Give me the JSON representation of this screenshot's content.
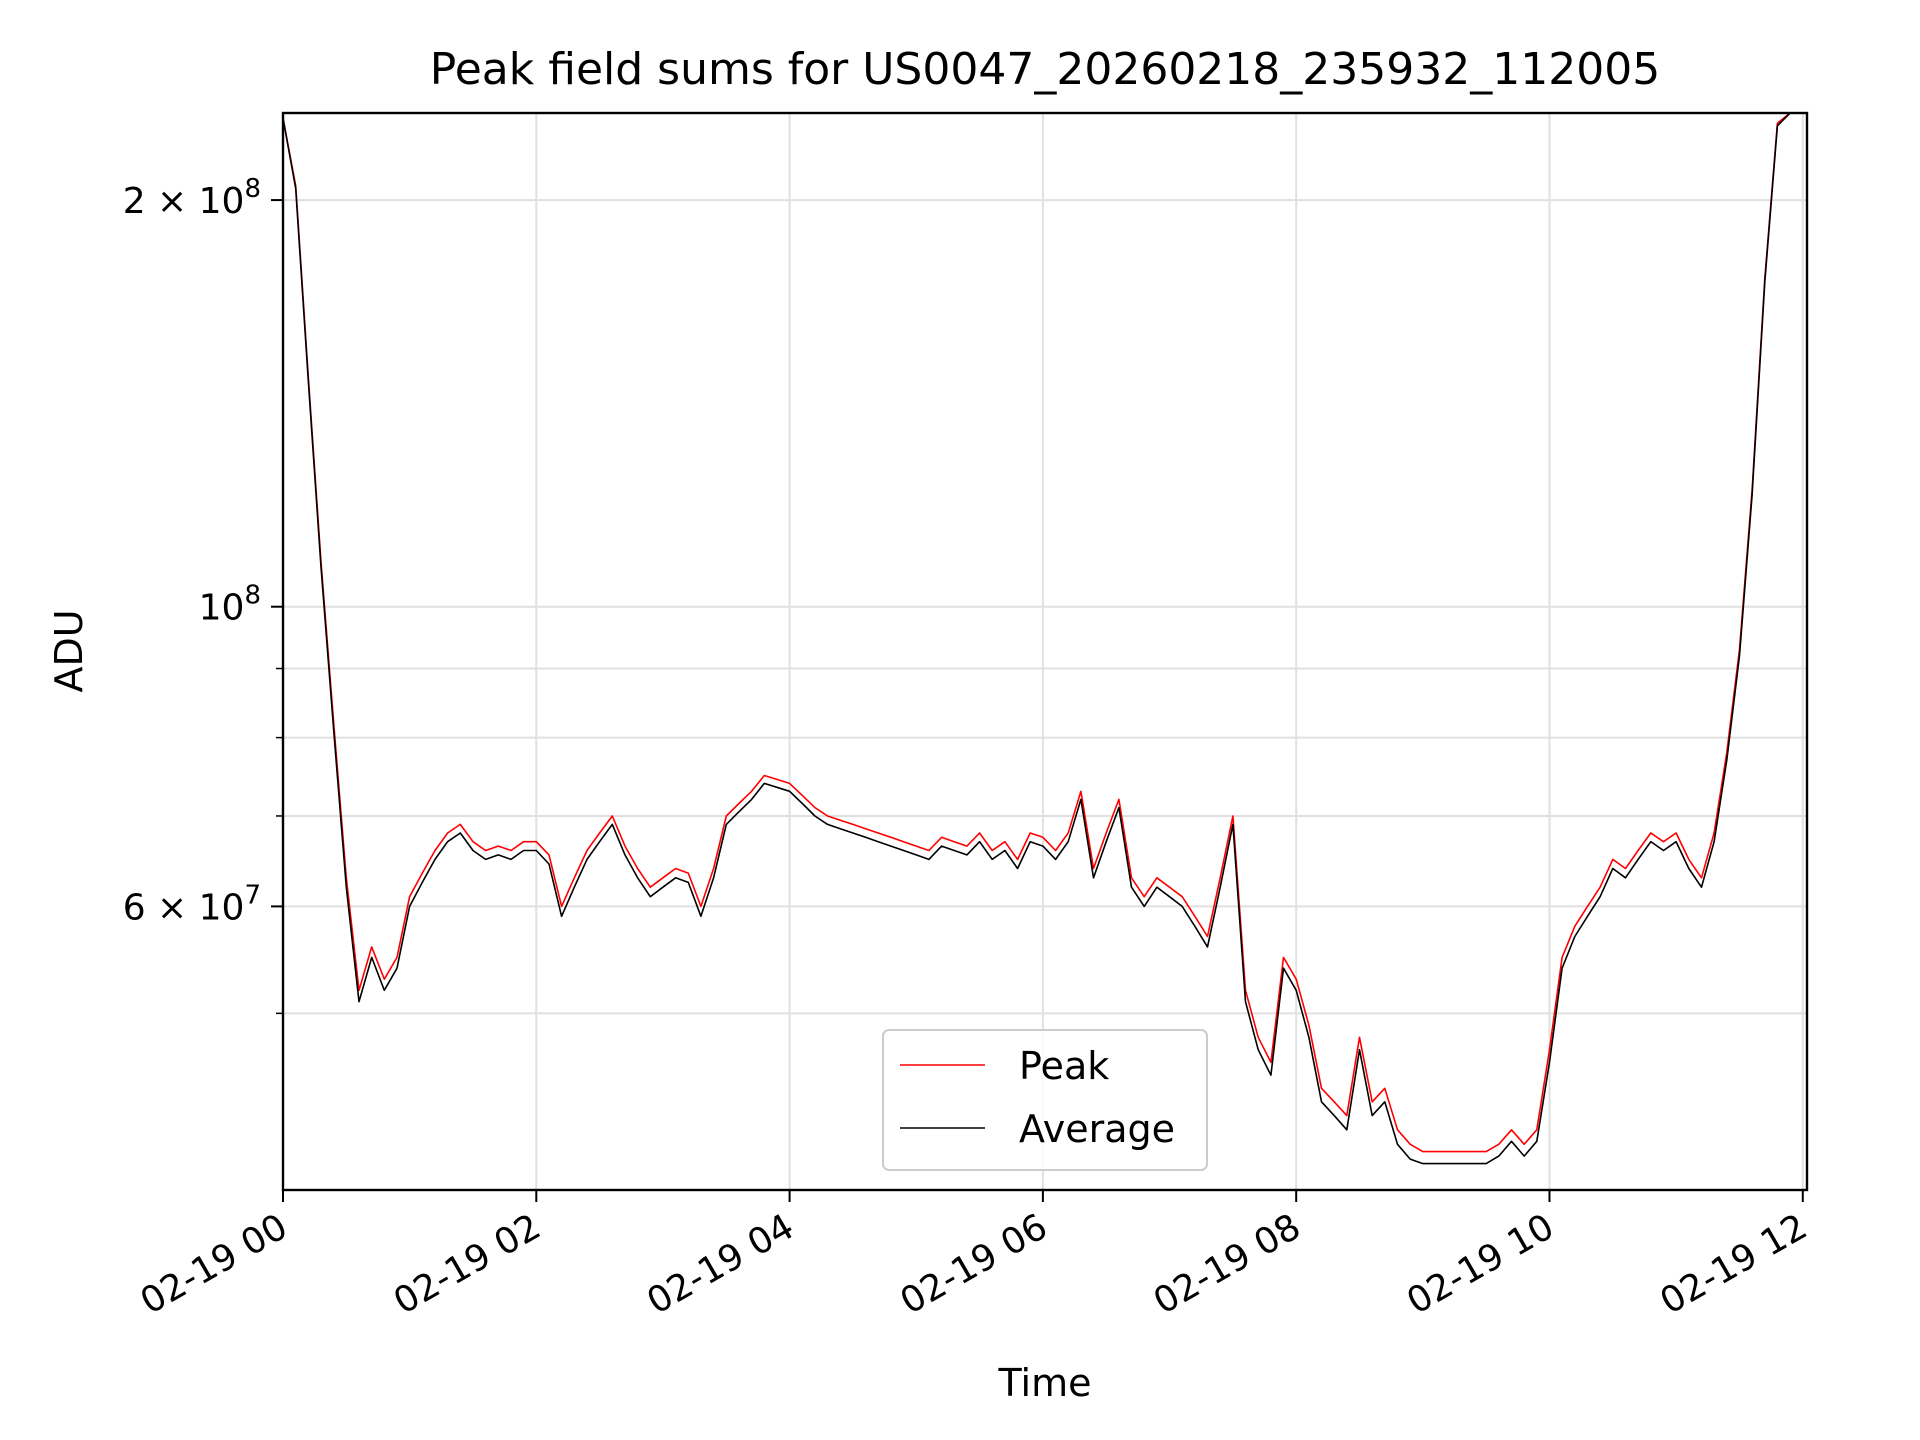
{
  "chart_data": {
    "type": "line",
    "title": "Peak field sums for US0047_20260218_235932_112005",
    "xlabel": "Time",
    "ylabel": "ADU",
    "y_scale": "log",
    "ylim": [
      37000000,
      232000000
    ],
    "xlim": [
      "02-19 00:00",
      "02-19 12:02"
    ],
    "grid": true,
    "legend_position": "lower center",
    "x_ticks": [
      {
        "value": "02-19 00:00",
        "label": "02-19 00"
      },
      {
        "value": "02-19 02:00",
        "label": "02-19 02"
      },
      {
        "value": "02-19 04:00",
        "label": "02-19 04"
      },
      {
        "value": "02-19 06:00",
        "label": "02-19 06"
      },
      {
        "value": "02-19 08:00",
        "label": "02-19 08"
      },
      {
        "value": "02-19 10:00",
        "label": "02-19 10"
      },
      {
        "value": "02-19 12:00",
        "label": "02-19 12"
      }
    ],
    "y_major_ticks": [
      {
        "value": 200000000,
        "mant": "2",
        "base": "10",
        "exp": "8",
        "mult": true
      },
      {
        "value": 100000000,
        "mant": "",
        "base": "10",
        "exp": "8",
        "mult": false
      },
      {
        "value": 60000000,
        "mant": "6",
        "base": "10",
        "exp": "7",
        "mult": true
      }
    ],
    "y_minor_ticks": [
      50000000,
      70000000,
      80000000,
      90000000
    ],
    "series": [
      {
        "name": "Peak",
        "color": "#ff0000",
        "x": [
          "02-19 00:00",
          "02-19 00:06",
          "02-19 00:12",
          "02-19 00:18",
          "02-19 00:24",
          "02-19 00:30",
          "02-19 00:36",
          "02-19 00:42",
          "02-19 00:48",
          "02-19 00:54",
          "02-19 01:00",
          "02-19 01:06",
          "02-19 01:12",
          "02-19 01:18",
          "02-19 01:24",
          "02-19 01:30",
          "02-19 01:36",
          "02-19 01:42",
          "02-19 01:48",
          "02-19 01:54",
          "02-19 02:00",
          "02-19 02:06",
          "02-19 02:12",
          "02-19 02:18",
          "02-19 02:24",
          "02-19 02:30",
          "02-19 02:36",
          "02-19 02:42",
          "02-19 02:48",
          "02-19 02:54",
          "02-19 03:00",
          "02-19 03:06",
          "02-19 03:12",
          "02-19 03:18",
          "02-19 03:24",
          "02-19 03:30",
          "02-19 03:36",
          "02-19 03:42",
          "02-19 03:48",
          "02-19 03:54",
          "02-19 04:00",
          "02-19 04:06",
          "02-19 04:12",
          "02-19 04:18",
          "02-19 04:24",
          "02-19 04:30",
          "02-19 04:36",
          "02-19 04:42",
          "02-19 04:48",
          "02-19 04:54",
          "02-19 05:00",
          "02-19 05:06",
          "02-19 05:12",
          "02-19 05:18",
          "02-19 05:24",
          "02-19 05:30",
          "02-19 05:36",
          "02-19 05:42",
          "02-19 05:48",
          "02-19 05:54",
          "02-19 06:00",
          "02-19 06:06",
          "02-19 06:12",
          "02-19 06:18",
          "02-19 06:24",
          "02-19 06:30",
          "02-19 06:36",
          "02-19 06:42",
          "02-19 06:48",
          "02-19 06:54",
          "02-19 07:00",
          "02-19 07:06",
          "02-19 07:12",
          "02-19 07:18",
          "02-19 07:24",
          "02-19 07:30",
          "02-19 07:36",
          "02-19 07:42",
          "02-19 07:48",
          "02-19 07:54",
          "02-19 08:00",
          "02-19 08:06",
          "02-19 08:12",
          "02-19 08:18",
          "02-19 08:24",
          "02-19 08:30",
          "02-19 08:36",
          "02-19 08:42",
          "02-19 08:48",
          "02-19 08:54",
          "02-19 09:00",
          "02-19 09:06",
          "02-19 09:12",
          "02-19 09:18",
          "02-19 09:24",
          "02-19 09:30",
          "02-19 09:36",
          "02-19 09:42",
          "02-19 09:48",
          "02-19 09:54",
          "02-19 10:00",
          "02-19 10:06",
          "02-19 10:12",
          "02-19 10:18",
          "02-19 10:24",
          "02-19 10:30",
          "02-19 10:36",
          "02-19 10:42",
          "02-19 10:48",
          "02-19 10:54",
          "02-19 11:00",
          "02-19 11:06",
          "02-19 11:12",
          "02-19 11:18",
          "02-19 11:24",
          "02-19 11:30",
          "02-19 11:36",
          "02-19 11:42",
          "02-19 11:48",
          "02-19 11:54",
          "02-19 12:00"
        ],
        "values": [
          230000000,
          205000000,
          148000000,
          108000000,
          82000000,
          63000000,
          52000000,
          56000000,
          53000000,
          55000000,
          61000000,
          63500000,
          66000000,
          68000000,
          69000000,
          67000000,
          66000000,
          66500000,
          66000000,
          67000000,
          67000000,
          65500000,
          60000000,
          63000000,
          66000000,
          68000000,
          70000000,
          66500000,
          64000000,
          62000000,
          63000000,
          64000000,
          63500000,
          60000000,
          64000000,
          70000000,
          71500000,
          73000000,
          75000000,
          74500000,
          74000000,
          72500000,
          71000000,
          70000000,
          69500000,
          69000000,
          68500000,
          68000000,
          67500000,
          67000000,
          66500000,
          66000000,
          67500000,
          67000000,
          66500000,
          68000000,
          66000000,
          67000000,
          65000000,
          68000000,
          67500000,
          66000000,
          68000000,
          73000000,
          64000000,
          68000000,
          72000000,
          63000000,
          61000000,
          63000000,
          62000000,
          61000000,
          59000000,
          57000000,
          63000000,
          70000000,
          52000000,
          48000000,
          46000000,
          55000000,
          53000000,
          49000000,
          44000000,
          43000000,
          42000000,
          48000000,
          43000000,
          44000000,
          41000000,
          40000000,
          39500000,
          39500000,
          39500000,
          39500000,
          39500000,
          39500000,
          40000000,
          41000000,
          40000000,
          41000000,
          47000000,
          55000000,
          58000000,
          60000000,
          62000000,
          65000000,
          64000000,
          66000000,
          68000000,
          67000000,
          68000000,
          65000000,
          63000000,
          68000000,
          78000000,
          93000000,
          122000000,
          175000000,
          228000000,
          232000000,
          232000000
        ]
      },
      {
        "name": "Average",
        "color": "#000000",
        "x": [
          "02-19 00:00",
          "02-19 00:06",
          "02-19 00:12",
          "02-19 00:18",
          "02-19 00:24",
          "02-19 00:30",
          "02-19 00:36",
          "02-19 00:42",
          "02-19 00:48",
          "02-19 00:54",
          "02-19 01:00",
          "02-19 01:06",
          "02-19 01:12",
          "02-19 01:18",
          "02-19 01:24",
          "02-19 01:30",
          "02-19 01:36",
          "02-19 01:42",
          "02-19 01:48",
          "02-19 01:54",
          "02-19 02:00",
          "02-19 02:06",
          "02-19 02:12",
          "02-19 02:18",
          "02-19 02:24",
          "02-19 02:30",
          "02-19 02:36",
          "02-19 02:42",
          "02-19 02:48",
          "02-19 02:54",
          "02-19 03:00",
          "02-19 03:06",
          "02-19 03:12",
          "02-19 03:18",
          "02-19 03:24",
          "02-19 03:30",
          "02-19 03:36",
          "02-19 03:42",
          "02-19 03:48",
          "02-19 03:54",
          "02-19 04:00",
          "02-19 04:06",
          "02-19 04:12",
          "02-19 04:18",
          "02-19 04:24",
          "02-19 04:30",
          "02-19 04:36",
          "02-19 04:42",
          "02-19 04:48",
          "02-19 04:54",
          "02-19 05:00",
          "02-19 05:06",
          "02-19 05:12",
          "02-19 05:18",
          "02-19 05:24",
          "02-19 05:30",
          "02-19 05:36",
          "02-19 05:42",
          "02-19 05:48",
          "02-19 05:54",
          "02-19 06:00",
          "02-19 06:06",
          "02-19 06:12",
          "02-19 06:18",
          "02-19 06:24",
          "02-19 06:30",
          "02-19 06:36",
          "02-19 06:42",
          "02-19 06:48",
          "02-19 06:54",
          "02-19 07:00",
          "02-19 07:06",
          "02-19 07:12",
          "02-19 07:18",
          "02-19 07:24",
          "02-19 07:30",
          "02-19 07:36",
          "02-19 07:42",
          "02-19 07:48",
          "02-19 07:54",
          "02-19 08:00",
          "02-19 08:06",
          "02-19 08:12",
          "02-19 08:18",
          "02-19 08:24",
          "02-19 08:30",
          "02-19 08:36",
          "02-19 08:42",
          "02-19 08:48",
          "02-19 08:54",
          "02-19 09:00",
          "02-19 09:06",
          "02-19 09:12",
          "02-19 09:18",
          "02-19 09:24",
          "02-19 09:30",
          "02-19 09:36",
          "02-19 09:42",
          "02-19 09:48",
          "02-19 09:54",
          "02-19 10:00",
          "02-19 10:06",
          "02-19 10:12",
          "02-19 10:18",
          "02-19 10:24",
          "02-19 10:30",
          "02-19 10:36",
          "02-19 10:42",
          "02-19 10:48",
          "02-19 10:54",
          "02-19 11:00",
          "02-19 11:06",
          "02-19 11:12",
          "02-19 11:18",
          "02-19 11:24",
          "02-19 11:30",
          "02-19 11:36",
          "02-19 11:42",
          "02-19 11:48",
          "02-19 11:54",
          "02-19 12:00"
        ],
        "values": [
          230000000,
          204000000,
          147000000,
          107000000,
          81000000,
          62000000,
          51000000,
          55000000,
          52000000,
          54000000,
          60000000,
          62500000,
          65000000,
          67000000,
          68000000,
          66000000,
          65000000,
          65500000,
          65000000,
          66000000,
          66000000,
          64500000,
          59000000,
          62000000,
          65000000,
          67000000,
          69000000,
          65500000,
          63000000,
          61000000,
          62000000,
          63000000,
          62500000,
          59000000,
          63000000,
          69000000,
          70500000,
          72000000,
          74000000,
          73500000,
          73000000,
          71500000,
          70000000,
          69000000,
          68500000,
          68000000,
          67500000,
          67000000,
          66500000,
          66000000,
          65500000,
          65000000,
          66500000,
          66000000,
          65500000,
          67000000,
          65000000,
          66000000,
          64000000,
          67000000,
          66500000,
          65000000,
          67000000,
          72000000,
          63000000,
          67000000,
          71000000,
          62000000,
          60000000,
          62000000,
          61000000,
          60000000,
          58000000,
          56000000,
          62000000,
          69000000,
          51000000,
          47000000,
          45000000,
          54000000,
          52000000,
          48000000,
          43000000,
          42000000,
          41000000,
          47000000,
          42000000,
          43000000,
          40000000,
          39000000,
          38700000,
          38700000,
          38700000,
          38700000,
          38700000,
          38700000,
          39200000,
          40200000,
          39200000,
          40200000,
          46000000,
          54000000,
          57000000,
          59000000,
          61000000,
          64000000,
          63000000,
          65000000,
          67000000,
          66000000,
          67000000,
          64000000,
          62000000,
          67000000,
          77000000,
          92000000,
          121000000,
          174000000,
          227000000,
          232000000,
          232000000
        ]
      }
    ]
  }
}
